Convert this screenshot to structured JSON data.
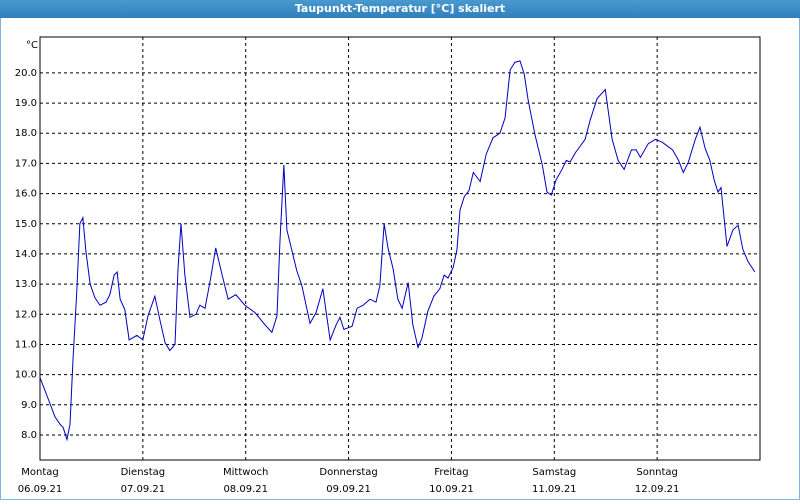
{
  "chart_data": {
    "type": "line",
    "title": "Taupunkt-Temperatur [°C] skaliert",
    "y_unit": "°C",
    "xlim": [
      0,
      168
    ],
    "ylim": [
      7.17,
      21.19
    ],
    "xticks": [
      {
        "value": 0,
        "label": "Montag"
      },
      {
        "value": 24,
        "label": "Dienstag"
      },
      {
        "value": 48,
        "label": "Mittwoch"
      },
      {
        "value": 72,
        "label": "Donnerstag"
      },
      {
        "value": 96,
        "label": "Freitag"
      },
      {
        "value": 120,
        "label": "Samstag"
      },
      {
        "value": 144,
        "label": "Sonntag"
      }
    ],
    "xtick_dates": [
      "06.09.21",
      "07.09.21",
      "08.09.21",
      "09.09.21",
      "10.09.21",
      "11.09.21",
      "12.09.21"
    ],
    "yticks": [
      {
        "value": 8,
        "label": "8.0"
      },
      {
        "value": 9,
        "label": "9.0"
      },
      {
        "value": 10,
        "label": "10.0"
      },
      {
        "value": 11,
        "label": "11.0"
      },
      {
        "value": 12,
        "label": "12.0"
      },
      {
        "value": 13,
        "label": "13.0"
      },
      {
        "value": 14,
        "label": "14.0"
      },
      {
        "value": 15,
        "label": "15.0"
      },
      {
        "value": 16,
        "label": "16.0"
      },
      {
        "value": 17,
        "label": "17.0"
      },
      {
        "value": 18,
        "label": "18.0"
      },
      {
        "value": 19,
        "label": "19.0"
      },
      {
        "value": 20,
        "label": "20.0"
      }
    ],
    "grid": true,
    "color": "#0000c0",
    "x": [
      0,
      1.9,
      3.5,
      4.7,
      5.4,
      6.3,
      7,
      7.7,
      8.6,
      9.3,
      10,
      10.7,
      11.7,
      12.8,
      14,
      15.4,
      16.3,
      17.3,
      18,
      18.7,
      19.8,
      20.8,
      22.6,
      24,
      25.2,
      26.8,
      28,
      29.2,
      30.3,
      31.5,
      32.2,
      32.9,
      33.8,
      35,
      36.4,
      37.3,
      38.5,
      39.7,
      41,
      42.5,
      43.9,
      45.7,
      47.8,
      50.2,
      52.5,
      54.1,
      55.3,
      56,
      56.9,
      57.6,
      58.8,
      59.9,
      61.1,
      63,
      64.4,
      66,
      67.7,
      69.1,
      70,
      70.9,
      72.8,
      74,
      75.4,
      77,
      78.4,
      79.3,
      80.3,
      81.2,
      82.4,
      83.5,
      84.5,
      85.9,
      87,
      88.2,
      89.1,
      90.5,
      91.9,
      93.3,
      94.3,
      95.2,
      96.4,
      97.3,
      98,
      99,
      100.1,
      101.1,
      102.7,
      104.1,
      105.7,
      107.3,
      108.5,
      109.7,
      110.8,
      112,
      113,
      113.9,
      115.5,
      117.2,
      118.3,
      119.3,
      120.4,
      121.8,
      122.8,
      123.7,
      124.9,
      127.2,
      128.4,
      130,
      131.9,
      133.5,
      134.9,
      136.3,
      138,
      139.1,
      140.1,
      141.9,
      143.6,
      145.2,
      147.6,
      149,
      150.1,
      151.3,
      152.9,
      154,
      155.2,
      156.3,
      157.3,
      158.2,
      158.9,
      160.3,
      161.7,
      162.9,
      164,
      165.2,
      166.8
    ],
    "values": [
      9.9,
      9.2,
      8.6,
      8.35,
      8.25,
      7.85,
      8.35,
      10.5,
      12.8,
      15.0,
      15.2,
      14.1,
      13.0,
      12.55,
      12.3,
      12.4,
      12.65,
      13.3,
      13.4,
      12.5,
      12.15,
      11.15,
      11.3,
      11.15,
      11.95,
      12.6,
      11.8,
      11.05,
      10.8,
      11.0,
      13.5,
      15.0,
      13.3,
      11.9,
      12.0,
      12.3,
      12.2,
      13.1,
      14.2,
      13.3,
      12.5,
      12.65,
      12.3,
      12.05,
      11.65,
      11.4,
      11.95,
      14.45,
      16.95,
      14.8,
      14.1,
      13.45,
      12.95,
      11.7,
      12.05,
      12.85,
      11.15,
      11.65,
      11.9,
      11.5,
      11.6,
      12.2,
      12.3,
      12.5,
      12.4,
      12.95,
      15.0,
      14.2,
      13.5,
      12.5,
      12.2,
      13.05,
      11.65,
      10.9,
      11.2,
      12.1,
      12.6,
      12.85,
      13.3,
      13.2,
      13.55,
      14.15,
      15.45,
      15.9,
      16.1,
      16.7,
      16.4,
      17.3,
      17.85,
      18.0,
      18.5,
      20.1,
      20.35,
      20.4,
      19.95,
      19.1,
      17.95,
      16.95,
      16.05,
      15.95,
      16.45,
      16.8,
      17.1,
      17.05,
      17.35,
      17.8,
      18.45,
      19.15,
      19.45,
      17.8,
      17.1,
      16.8,
      17.45,
      17.45,
      17.2,
      17.65,
      17.8,
      17.7,
      17.45,
      17.1,
      16.7,
      17.05,
      17.8,
      18.2,
      17.5,
      17.1,
      16.45,
      16.05,
      16.2,
      14.25,
      14.8,
      14.95,
      14.15,
      13.75,
      13.4
    ]
  }
}
